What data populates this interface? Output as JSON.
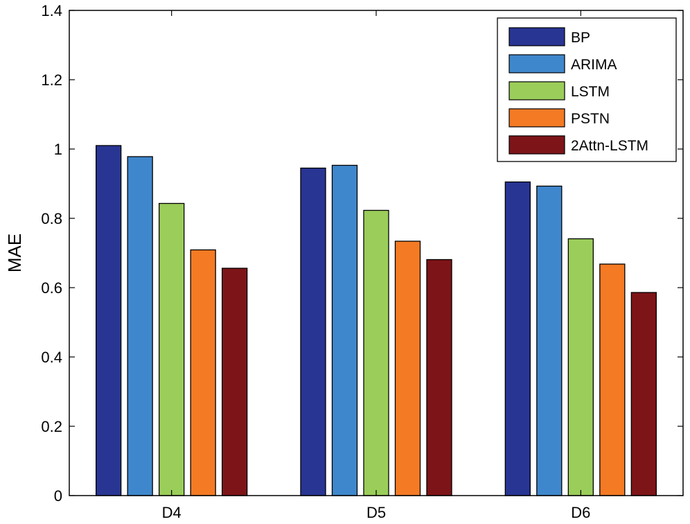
{
  "chart_data": {
    "type": "bar",
    "title": "",
    "xlabel": "",
    "ylabel": "MAE",
    "ylim": [
      0,
      1.4
    ],
    "yticks": [
      "0",
      "0.2",
      "0.4",
      "0.6",
      "0.8",
      "1",
      "1.2",
      "1.4"
    ],
    "categories": [
      "D4",
      "D5",
      "D6"
    ],
    "grid": false,
    "legend_position": "top-right",
    "series": [
      {
        "name": "BP",
        "color": "#283593",
        "values": [
          1.01,
          0.945,
          0.905
        ]
      },
      {
        "name": "ARIMA",
        "color": "#3f87cc",
        "values": [
          0.978,
          0.953,
          0.893
        ]
      },
      {
        "name": "LSTM",
        "color": "#9bcd5a",
        "values": [
          0.843,
          0.823,
          0.741
        ]
      },
      {
        "name": "PSTN",
        "color": "#f47a24",
        "values": [
          0.709,
          0.734,
          0.668
        ]
      },
      {
        "name": "2Attn-LSTM",
        "color": "#7d1418",
        "values": [
          0.656,
          0.681,
          0.586
        ]
      }
    ]
  }
}
